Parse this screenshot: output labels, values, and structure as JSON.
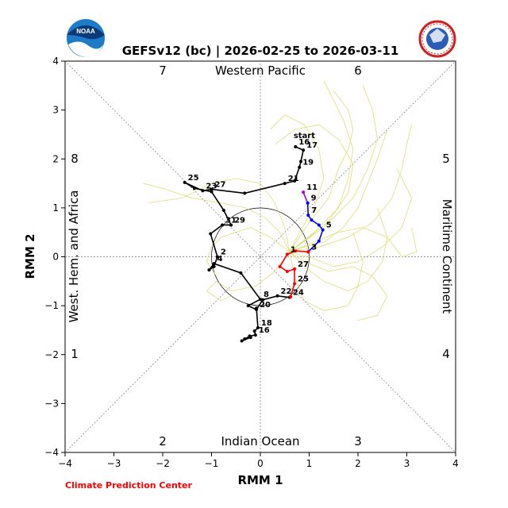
{
  "chart_data": {
    "type": "line",
    "title": "GEFSv12 (bc) | 2026-02-25 to 2026-03-11",
    "xlabel": "RMM 1",
    "ylabel": "RMM 2",
    "xlim": [
      -4,
      4
    ],
    "ylim": [
      -4,
      4
    ],
    "xticks": [
      "−4",
      "−3",
      "−2",
      "−1",
      "0",
      "1",
      "2",
      "3",
      "4"
    ],
    "yticks": [
      "−4",
      "−3",
      "−2",
      "−1",
      "0",
      "1",
      "2",
      "3",
      "4"
    ],
    "grid": false,
    "phases": [
      "1",
      "2",
      "3",
      "4",
      "5",
      "6",
      "7",
      "8"
    ],
    "regions": {
      "top": "Western Pacific",
      "bottom": "Indian Ocean",
      "left": "West. Hem. and Africa",
      "right": "Maritime Continent"
    },
    "start_label": "start",
    "colors": {
      "observed": "#000000",
      "forecast_1": "#ff0000",
      "forecast_2": "#0000ff",
      "forecast_3": "#aa00cc",
      "members": "#d8d860"
    },
    "series": [
      {
        "color": "black",
        "points": [
          {
            "x": 0.72,
            "y": 2.25,
            "label": "16"
          },
          {
            "x": 0.88,
            "y": 2.18,
            "label": "17"
          },
          {
            "x": 0.83,
            "y": 1.95,
            "label": ""
          },
          {
            "x": 0.8,
            "y": 1.83,
            "label": "19"
          },
          {
            "x": 0.7,
            "y": 1.55,
            "label": ""
          },
          {
            "x": 0.5,
            "y": 1.5,
            "label": "21"
          },
          {
            "x": -0.32,
            "y": 1.3,
            "label": ""
          },
          {
            "x": -1.0,
            "y": 1.38,
            "label": "27"
          },
          {
            "x": -1.18,
            "y": 1.35,
            "label": "23"
          },
          {
            "x": -1.55,
            "y": 1.52,
            "label": "25"
          },
          {
            "x": -1.35,
            "y": 1.4,
            "label": ""
          },
          {
            "x": -1.0,
            "y": 1.33,
            "label": ""
          },
          {
            "x": -0.75,
            "y": 0.95,
            "label": ""
          },
          {
            "x": -0.6,
            "y": 0.65,
            "label": "29"
          },
          {
            "x": -0.78,
            "y": 0.65,
            "label": "31"
          },
          {
            "x": -1.02,
            "y": 0.47,
            "label": ""
          },
          {
            "x": -0.88,
            "y": 0.0,
            "label": "2"
          },
          {
            "x": -0.95,
            "y": -0.2,
            "label": ""
          },
          {
            "x": -1.05,
            "y": -0.27,
            "label": ""
          },
          {
            "x": -0.95,
            "y": -0.14,
            "label": "4"
          },
          {
            "x": -0.4,
            "y": -0.33,
            "label": ""
          },
          {
            "x": 0.0,
            "y": -0.87,
            "label": "8"
          },
          {
            "x": -0.25,
            "y": -1.0,
            "label": ""
          },
          {
            "x": -0.08,
            "y": -1.08,
            "label": "20"
          },
          {
            "x": 0.05,
            "y": -0.88,
            "label": ""
          },
          {
            "x": 0.35,
            "y": -0.8,
            "label": "22"
          },
          {
            "x": 0.6,
            "y": -0.83,
            "label": "24"
          }
        ]
      },
      {
        "color": "black",
        "points": [
          {
            "x": -0.08,
            "y": -1.05,
            "label": ""
          },
          {
            "x": -0.05,
            "y": -1.45,
            "label": "18"
          },
          {
            "x": -0.12,
            "y": -1.52,
            "label": ""
          },
          {
            "x": -0.1,
            "y": -1.6,
            "label": "16"
          },
          {
            "x": -0.22,
            "y": -1.62,
            "label": ""
          },
          {
            "x": -0.38,
            "y": -1.72,
            "label": ""
          },
          {
            "x": -0.2,
            "y": -1.65,
            "label": ""
          },
          {
            "x": -0.32,
            "y": -1.68,
            "label": ""
          }
        ]
      },
      {
        "color": "purple",
        "points": [
          {
            "x": 0.88,
            "y": 1.32,
            "label": "11"
          },
          {
            "x": 0.97,
            "y": 1.1,
            "label": "9"
          }
        ]
      },
      {
        "color": "blue",
        "points": [
          {
            "x": 0.97,
            "y": 1.1,
            "label": ""
          },
          {
            "x": 0.98,
            "y": 0.85,
            "label": "7"
          },
          {
            "x": 1.05,
            "y": 0.75,
            "label": ""
          },
          {
            "x": 1.2,
            "y": 0.65,
            "label": ""
          },
          {
            "x": 1.28,
            "y": 0.55,
            "label": "5"
          },
          {
            "x": 1.2,
            "y": 0.32,
            "label": ""
          },
          {
            "x": 0.98,
            "y": 0.1,
            "label": "3"
          }
        ]
      },
      {
        "color": "red",
        "points": [
          {
            "x": 0.98,
            "y": 0.1,
            "label": ""
          },
          {
            "x": 0.72,
            "y": 0.12,
            "label": ""
          },
          {
            "x": 0.55,
            "y": 0.05,
            "label": "1"
          },
          {
            "x": 0.4,
            "y": -0.2,
            "label": ""
          },
          {
            "x": 0.55,
            "y": -0.3,
            "label": ""
          },
          {
            "x": 0.7,
            "y": -0.25,
            "label": "27"
          },
          {
            "x": 0.7,
            "y": -0.55,
            "label": "25"
          },
          {
            "x": 0.62,
            "y": -0.82,
            "label": ""
          }
        ]
      }
    ],
    "ensemble_members": [
      [
        [
          0.6,
          0.1
        ],
        [
          0.9,
          0.2
        ],
        [
          1.3,
          0.3
        ],
        [
          1.7,
          0.6
        ],
        [
          2.0,
          1.0
        ],
        [
          2.2,
          1.5
        ],
        [
          2.4,
          2.0
        ],
        [
          2.6,
          2.6
        ]
      ],
      [
        [
          0.6,
          0.1
        ],
        [
          1.0,
          0.4
        ],
        [
          1.5,
          0.8
        ],
        [
          1.9,
          1.2
        ],
        [
          2.2,
          1.8
        ],
        [
          2.4,
          2.4
        ],
        [
          2.3,
          3.0
        ],
        [
          2.1,
          3.5
        ]
      ],
      [
        [
          0.6,
          0.1
        ],
        [
          1.1,
          0.5
        ],
        [
          1.6,
          1.0
        ],
        [
          1.8,
          1.6
        ],
        [
          1.9,
          2.2
        ],
        [
          1.7,
          2.8
        ],
        [
          1.5,
          3.2
        ],
        [
          1.3,
          3.6
        ]
      ],
      [
        [
          0.6,
          0.1
        ],
        [
          1.2,
          0.2
        ],
        [
          1.8,
          0.4
        ],
        [
          2.3,
          0.7
        ],
        [
          2.7,
          1.2
        ],
        [
          2.9,
          1.8
        ],
        [
          3.0,
          2.3
        ],
        [
          3.1,
          2.7
        ]
      ],
      [
        [
          0.6,
          0.1
        ],
        [
          1.0,
          0.0
        ],
        [
          1.5,
          -0.2
        ],
        [
          2.0,
          -0.1
        ],
        [
          2.5,
          0.2
        ],
        [
          2.9,
          0.6
        ],
        [
          3.1,
          1.2
        ],
        [
          2.8,
          1.8
        ]
      ],
      [
        [
          0.6,
          0.1
        ],
        [
          1.3,
          0.6
        ],
        [
          1.8,
          1.3
        ],
        [
          1.9,
          1.9
        ],
        [
          1.6,
          2.4
        ],
        [
          1.2,
          2.7
        ],
        [
          0.7,
          2.6
        ],
        [
          0.3,
          2.3
        ]
      ],
      [
        [
          0.6,
          0.1
        ],
        [
          0.8,
          0.5
        ],
        [
          1.1,
          1.0
        ],
        [
          1.3,
          1.6
        ],
        [
          1.2,
          2.2
        ],
        [
          0.9,
          2.7
        ],
        [
          0.5,
          2.9
        ],
        [
          0.2,
          2.6
        ]
      ],
      [
        [
          0.6,
          0.1
        ],
        [
          0.5,
          0.6
        ],
        [
          0.3,
          1.1
        ],
        [
          0.0,
          1.5
        ],
        [
          -0.5,
          1.6
        ],
        [
          -1.0,
          1.5
        ],
        [
          -1.6,
          1.2
        ],
        [
          -2.3,
          1.1
        ]
      ],
      [
        [
          0.6,
          0.1
        ],
        [
          0.4,
          0.5
        ],
        [
          0.1,
          0.8
        ],
        [
          -0.3,
          1.0
        ],
        [
          -0.8,
          1.1
        ],
        [
          -1.4,
          1.2
        ],
        [
          -2.0,
          1.4
        ],
        [
          -2.4,
          1.5
        ]
      ],
      [
        [
          0.6,
          0.1
        ],
        [
          0.9,
          -0.2
        ],
        [
          1.3,
          -0.5
        ],
        [
          1.8,
          -0.7
        ],
        [
          2.2,
          -0.5
        ],
        [
          2.5,
          -0.1
        ],
        [
          2.6,
          0.4
        ],
        [
          2.4,
          1.0
        ]
      ],
      [
        [
          0.6,
          0.1
        ],
        [
          0.7,
          -0.4
        ],
        [
          0.9,
          -0.9
        ],
        [
          1.3,
          -1.1
        ],
        [
          1.8,
          -1.0
        ],
        [
          2.0,
          -0.6
        ],
        [
          2.1,
          -0.1
        ],
        [
          1.9,
          0.5
        ]
      ],
      [
        [
          0.6,
          0.1
        ],
        [
          0.3,
          -0.3
        ],
        [
          -0.1,
          -0.6
        ],
        [
          -0.6,
          -0.7
        ],
        [
          -0.9,
          -0.5
        ],
        [
          -1.1,
          -0.7
        ],
        [
          -0.8,
          -0.9
        ],
        [
          -0.6,
          -0.8
        ]
      ],
      [
        [
          0.6,
          0.1
        ],
        [
          1.1,
          0.3
        ],
        [
          1.6,
          0.5
        ],
        [
          2.1,
          0.6
        ],
        [
          2.6,
          0.4
        ],
        [
          2.9,
          0.0
        ],
        [
          3.2,
          0.1
        ],
        [
          3.1,
          0.6
        ]
      ],
      [
        [
          0.6,
          0.1
        ],
        [
          0.2,
          0.4
        ],
        [
          -0.2,
          0.6
        ],
        [
          -0.5,
          0.5
        ],
        [
          -0.8,
          0.4
        ],
        [
          -1.0,
          0.2
        ],
        [
          -1.1,
          -0.1
        ],
        [
          -0.9,
          -0.4
        ]
      ],
      [
        [
          0.6,
          0.1
        ],
        [
          1.0,
          0.7
        ],
        [
          1.4,
          1.2
        ],
        [
          1.6,
          1.8
        ],
        [
          1.8,
          2.2
        ],
        [
          1.9,
          2.6
        ],
        [
          1.8,
          3.0
        ],
        [
          1.5,
          3.4
        ]
      ],
      [
        [
          0.6,
          0.1
        ],
        [
          0.9,
          -0.1
        ],
        [
          1.4,
          -0.3
        ],
        [
          1.9,
          -0.2
        ],
        [
          2.3,
          -0.4
        ],
        [
          2.6,
          -0.8
        ],
        [
          2.4,
          -1.2
        ],
        [
          2.0,
          -1.3
        ]
      ]
    ]
  },
  "footer": {
    "credit": "Climate Prediction Center"
  },
  "logos": {
    "left": "NOAA",
    "right": "National Weather Service"
  }
}
